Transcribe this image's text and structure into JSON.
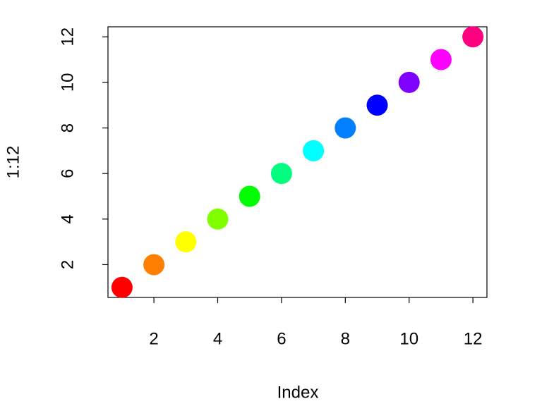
{
  "chart_data": {
    "type": "scatter",
    "xlabel": "Index",
    "ylabel": "1:12",
    "x": [
      1,
      2,
      3,
      4,
      5,
      6,
      7,
      8,
      9,
      10,
      11,
      12
    ],
    "values": [
      1,
      2,
      3,
      4,
      5,
      6,
      7,
      8,
      9,
      10,
      11,
      12
    ],
    "colors": [
      "#FF0000",
      "#FF8000",
      "#FFFF00",
      "#80FF00",
      "#00FF00",
      "#00FF80",
      "#00FFFF",
      "#0080FF",
      "#0000FF",
      "#8000FF",
      "#FF00FF",
      "#FF0080"
    ],
    "xlim": [
      0.56,
      12.44
    ],
    "ylim": [
      0.56,
      12.44
    ],
    "xticks": [
      2,
      4,
      6,
      8,
      10,
      12
    ],
    "yticks": [
      2,
      4,
      6,
      8,
      10,
      12
    ]
  }
}
